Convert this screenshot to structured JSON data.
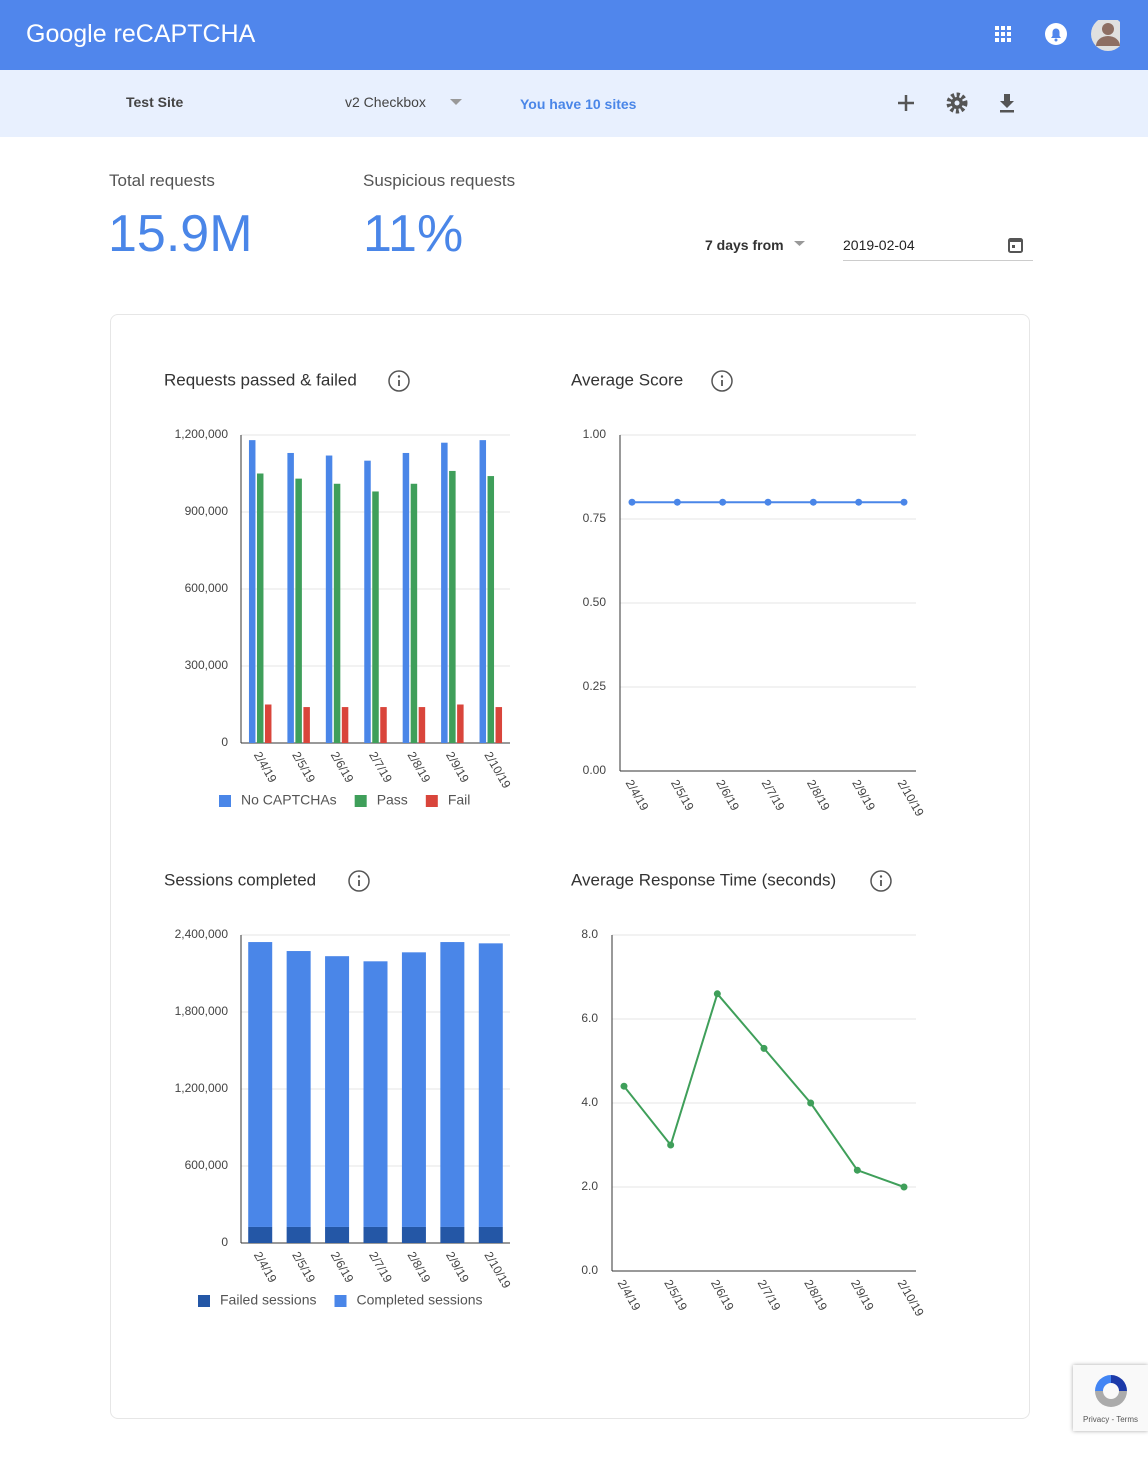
{
  "header": {
    "title": "Google reCAPTCHA"
  },
  "toolbar": {
    "site": "Test Site",
    "key_type": "v2 Checkbox",
    "sites_link": "You have 10 sites"
  },
  "stats": [
    {
      "label": "Total requests",
      "value": "15.9M"
    },
    {
      "label": "Suspicious requests",
      "value": "11%"
    }
  ],
  "date_range": {
    "span": "7 days from",
    "start": "2019-02-04"
  },
  "badge": {
    "text": "Privacy - Terms"
  },
  "chart_data": [
    {
      "type": "bar",
      "title": "Requests passed & failed",
      "categories": [
        "2/4/19",
        "2/5/19",
        "2/6/19",
        "2/7/19",
        "2/8/19",
        "2/9/19",
        "2/10/19"
      ],
      "series": [
        {
          "name": "No CAPTCHAs",
          "color": "#4a86e8",
          "values": [
            1180000,
            1130000,
            1120000,
            1100000,
            1130000,
            1170000,
            1180000
          ]
        },
        {
          "name": "Pass",
          "color": "#3f9f5a",
          "values": [
            1050000,
            1030000,
            1010000,
            980000,
            1010000,
            1060000,
            1040000
          ]
        },
        {
          "name": "Fail",
          "color": "#d9453b",
          "values": [
            150000,
            140000,
            140000,
            140000,
            140000,
            150000,
            140000
          ]
        }
      ],
      "ylim": [
        0,
        1200000
      ],
      "yticks": [
        0,
        {
          "value": 300000,
          "label": "300,000"
        },
        {
          "value": 600000,
          "label": "600,000"
        },
        {
          "value": 900000,
          "label": "900,000"
        },
        {
          "value": 1200000,
          "label": "1,200,000"
        }
      ],
      "grid": true,
      "legend": "bottom"
    },
    {
      "type": "line",
      "title": "Average Score",
      "categories": [
        "2/4/19",
        "2/5/19",
        "2/6/19",
        "2/7/19",
        "2/8/19",
        "2/9/19",
        "2/10/19"
      ],
      "values": [
        0.8,
        0.8,
        0.8,
        0.8,
        0.8,
        0.8,
        0.8
      ],
      "color": "#4a86e8",
      "ylim": [
        0,
        1
      ],
      "yticks": [
        {
          "value": 0,
          "label": "0.00"
        },
        {
          "value": 0.25,
          "label": "0.25"
        },
        {
          "value": 0.5,
          "label": "0.50"
        },
        {
          "value": 0.75,
          "label": "0.75"
        },
        {
          "value": 1,
          "label": "1.00"
        }
      ],
      "grid": true
    },
    {
      "type": "bar",
      "stacked": true,
      "title": "Sessions completed",
      "categories": [
        "2/4/19",
        "2/5/19",
        "2/6/19",
        "2/7/19",
        "2/8/19",
        "2/9/19",
        "2/10/19"
      ],
      "series": [
        {
          "name": "Failed sessions",
          "color": "#2457a6",
          "values": [
            125000,
            125000,
            125000,
            125000,
            125000,
            125000,
            125000
          ]
        },
        {
          "name": "Completed sessions",
          "color": "#4a86e8",
          "values": [
            2220000,
            2150000,
            2110000,
            2070000,
            2140000,
            2220000,
            2210000
          ]
        }
      ],
      "ylim": [
        0,
        2400000
      ],
      "yticks": [
        0,
        {
          "value": 600000,
          "label": "600,000"
        },
        {
          "value": 1200000,
          "label": "1,200,000"
        },
        {
          "value": 1800000,
          "label": "1,800,000"
        },
        {
          "value": 2400000,
          "label": "2,400,000"
        }
      ],
      "grid": true,
      "legend": "bottom"
    },
    {
      "type": "line",
      "title": "Average Response Time (seconds)",
      "categories": [
        "2/4/19",
        "2/5/19",
        "2/6/19",
        "2/7/19",
        "2/8/19",
        "2/9/19",
        "2/10/19"
      ],
      "values": [
        4.4,
        3.0,
        6.6,
        5.3,
        4.0,
        2.4,
        2.0
      ],
      "color": "#3f9f5a",
      "ylim": [
        0,
        8
      ],
      "yticks": [
        {
          "value": 0,
          "label": "0.0"
        },
        {
          "value": 2,
          "label": "2.0"
        },
        {
          "value": 4,
          "label": "4.0"
        },
        {
          "value": 6,
          "label": "6.0"
        },
        {
          "value": 8,
          "label": "8.0"
        }
      ],
      "grid": true
    }
  ]
}
